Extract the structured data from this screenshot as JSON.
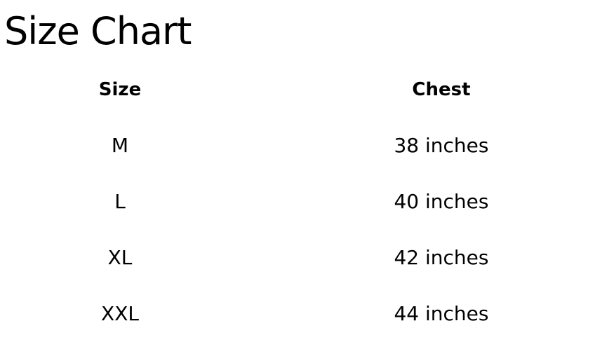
{
  "title": "Size Chart",
  "headers": [
    "Size",
    "Chest"
  ],
  "rows": [
    [
      "M",
      "38 inches"
    ],
    [
      "L",
      "40 inches"
    ],
    [
      "XL",
      "42 inches"
    ],
    [
      "XXL",
      "44 inches"
    ]
  ]
}
